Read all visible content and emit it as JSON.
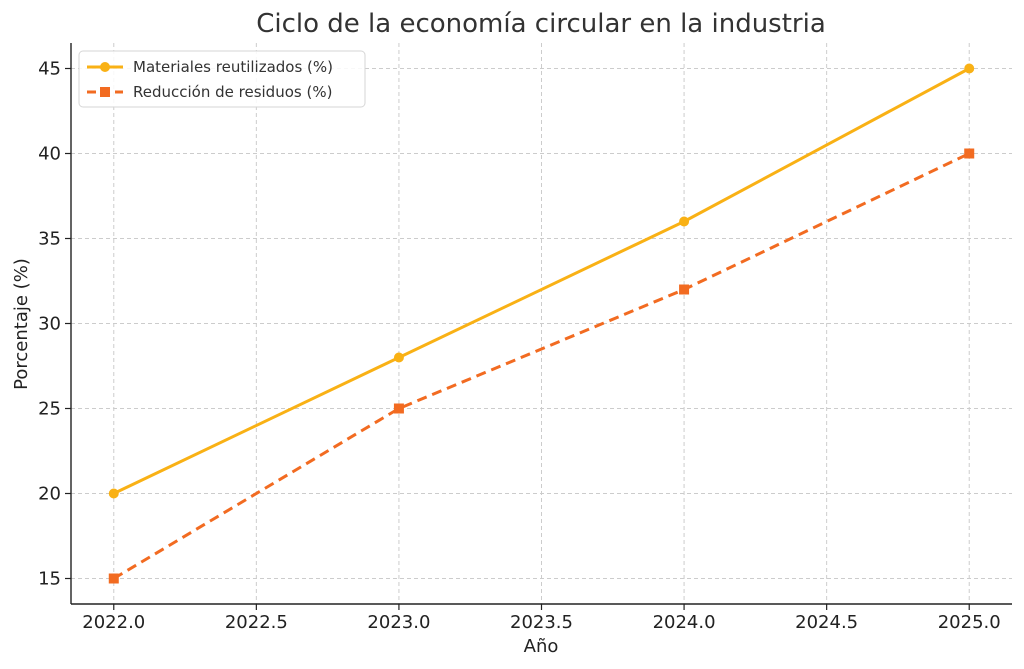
{
  "chart_data": {
    "type": "line",
    "title": "Ciclo de la economía circular en la industria",
    "xlabel": "Año",
    "ylabel": "Porcentaje (%)",
    "x": [
      2022,
      2023,
      2024,
      2025
    ],
    "xlim": [
      2021.85,
      2025.15
    ],
    "ylim": [
      13.5,
      46.5
    ],
    "xticks": [
      "2022.0",
      "2022.5",
      "2023.0",
      "2023.5",
      "2024.0",
      "2024.5",
      "2025.0"
    ],
    "xtick_values": [
      2022.0,
      2022.5,
      2023.0,
      2023.5,
      2024.0,
      2024.5,
      2025.0
    ],
    "yticks": [
      "15",
      "20",
      "25",
      "30",
      "35",
      "40",
      "45"
    ],
    "ytick_values": [
      15,
      20,
      25,
      30,
      35,
      40,
      45
    ],
    "grid": true,
    "legend_position": "top-left",
    "series": [
      {
        "name": "Materiales reutilizados (%)",
        "values": [
          20,
          28,
          36,
          45
        ],
        "color": "#F9B115",
        "line_style": "solid",
        "marker": "circle"
      },
      {
        "name": "Reducción de residuos (%)",
        "values": [
          15,
          25,
          32,
          40
        ],
        "color": "#F26B21",
        "line_style": "dashed",
        "marker": "square"
      }
    ]
  }
}
